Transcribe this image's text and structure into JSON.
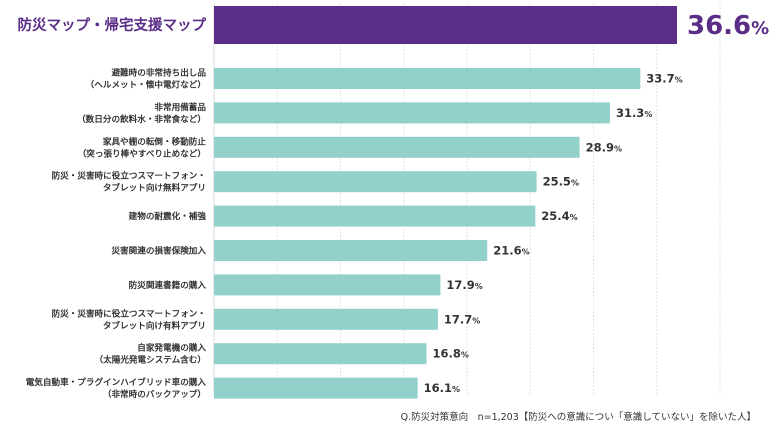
{
  "chart_data": {
    "type": "bar",
    "orientation": "horizontal",
    "title": "",
    "xlabel": "",
    "ylabel": "",
    "unit": "%",
    "xlim": [
      0,
      40
    ],
    "grid": true,
    "legend": "none",
    "categories": [
      [
        "防災マップ・帰宅支援マップ"
      ],
      [
        "避難時の非常持ち出し品",
        "（ヘルメット・懐中電灯など）"
      ],
      [
        "非常用備蓄品",
        "（数日分の飲料水・非常食など）"
      ],
      [
        "家具や棚の転倒・移動防止",
        "（突っ張り棒やすべり止めなど）"
      ],
      [
        "防災・災害時に役立つスマートフォン・",
        "タブレット向け無料アプリ"
      ],
      [
        "建物の耐震化・補強"
      ],
      [
        "災害関連の損害保険加入"
      ],
      [
        "防災関連書籍の購入"
      ],
      [
        "防災・災害時に役立つスマートフォン・",
        "タブレット向け有料アプリ"
      ],
      [
        "自家発電機の購入",
        "（太陽光発電システム含む）"
      ],
      [
        "電気自動車・プラグインハイブリッド車の購入",
        "（非常時のバックアップ）"
      ]
    ],
    "values": [
      36.6,
      33.7,
      31.3,
      28.9,
      25.5,
      25.4,
      21.6,
      17.9,
      17.7,
      16.8,
      16.1
    ],
    "highlight_index": 0,
    "colors": {
      "highlight": "#5a2d86",
      "bar": "#92d0cb",
      "grid": "#cfcfcf"
    }
  },
  "footnote": "Q.防災対策意向　n=1,203【防災への意識につい「意識していない」を除いた人】"
}
